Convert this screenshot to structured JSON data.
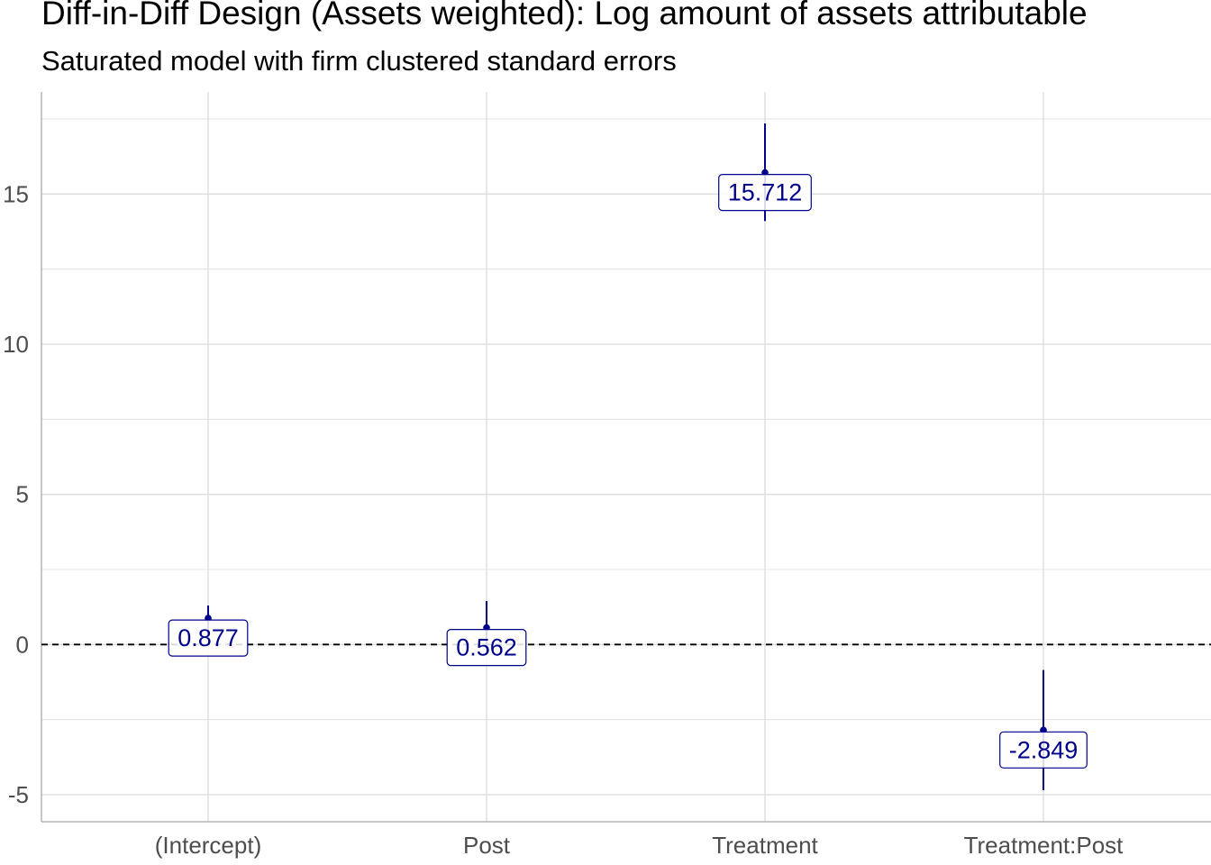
{
  "chart_data": {
    "type": "coefficient-plot",
    "title": "Diff-in-Diff Design (Assets weighted): Log amount of assets attributable",
    "subtitle": "Saturated model with firm clustered standard errors",
    "xlabel": "",
    "ylabel": "",
    "categories": [
      "(Intercept)",
      "Post",
      "Treatment",
      "Treatment:Post"
    ],
    "estimates": [
      0.877,
      0.562,
      15.712,
      -2.849
    ],
    "labels": [
      "0.877",
      "0.562",
      "15.712",
      "-2.849"
    ],
    "ci_low": [
      0.45,
      -0.35,
      14.1,
      -4.85
    ],
    "ci_high": [
      1.3,
      1.45,
      17.35,
      -0.85
    ],
    "ylim": [
      -5.9,
      18.4
    ],
    "y_ticks": [
      -5,
      0,
      5,
      10,
      15
    ],
    "y_tick_labels": [
      "-5",
      "0",
      "5",
      "10",
      "15"
    ],
    "reference_line": 0,
    "grid": true,
    "colors": {
      "point": "#00008b",
      "label_text": "#00008b",
      "grid": "#dcdcdc",
      "axis": "#b3b3b3"
    }
  }
}
